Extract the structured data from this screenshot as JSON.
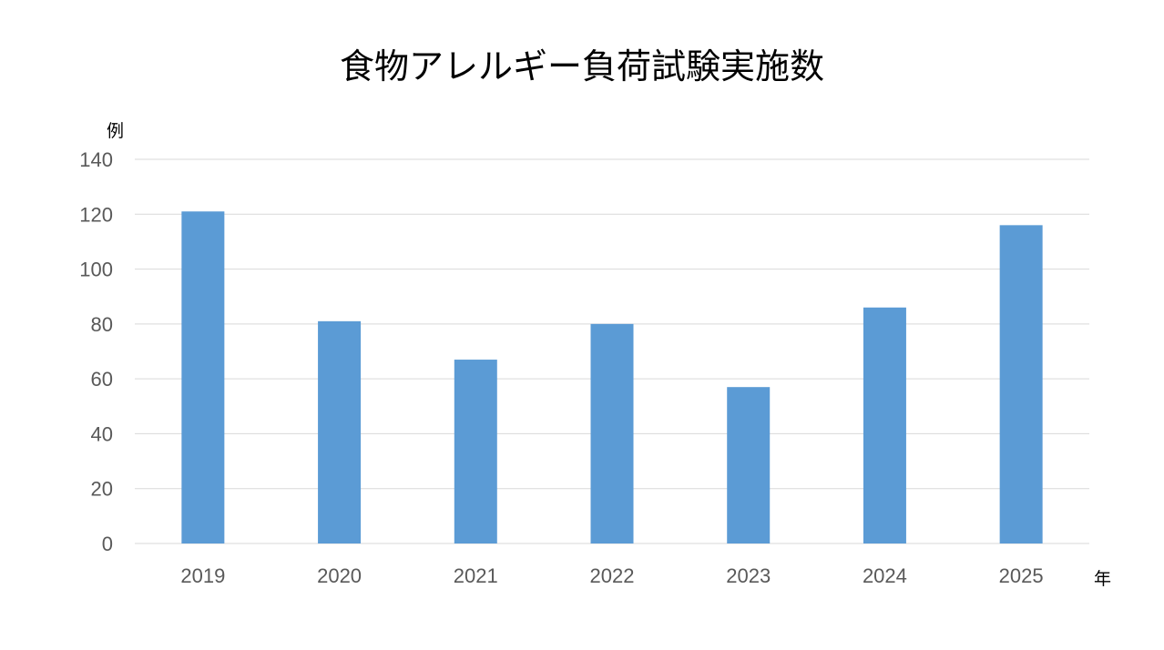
{
  "chart_data": {
    "type": "bar",
    "title": "食物アレルギー負荷試験実施数",
    "ylabel": "例",
    "xlabel": "年",
    "categories": [
      "2019",
      "2020",
      "2021",
      "2022",
      "2023",
      "2024",
      "2025"
    ],
    "values": [
      121,
      81,
      67,
      80,
      57,
      86,
      116
    ],
    "ylim": [
      0,
      140
    ],
    "yticks": [
      "0",
      "20",
      "40",
      "60",
      "80",
      "100",
      "120",
      "140"
    ],
    "grid": true,
    "legend": "none",
    "colors": {
      "bar": "#5B9BD5",
      "grid": "#D9D9D9",
      "tick_text": "#595959"
    }
  }
}
